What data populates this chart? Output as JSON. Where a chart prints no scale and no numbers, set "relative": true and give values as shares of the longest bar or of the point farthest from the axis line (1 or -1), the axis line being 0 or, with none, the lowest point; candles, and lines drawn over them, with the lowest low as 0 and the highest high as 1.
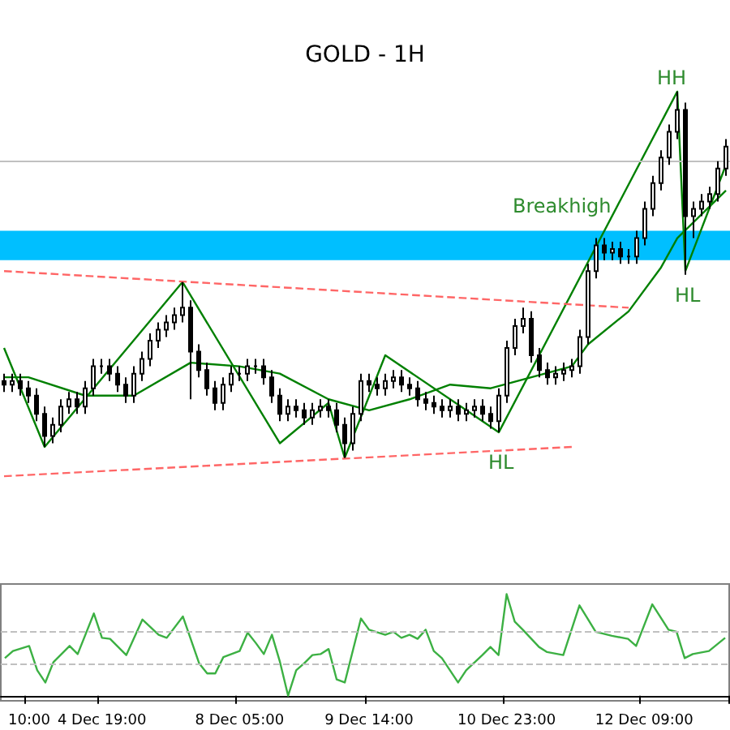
{
  "chart_data": [
    {
      "type": "candlestick",
      "title": "GOLD - 1H",
      "relative": true,
      "tick_labels": false,
      "marker": "none",
      "categories": [
        null,
        null,
        null,
        null,
        null,
        null,
        null,
        null,
        null,
        null,
        null,
        null,
        null,
        null,
        null,
        null,
        null,
        null,
        null,
        null,
        null,
        null,
        null,
        null,
        null,
        null,
        null,
        null,
        null,
        null,
        null,
        null,
        null,
        null,
        null,
        null,
        null,
        null,
        null,
        null,
        null,
        null,
        null,
        null,
        null,
        null,
        null,
        null,
        null,
        null,
        null,
        null,
        null,
        null,
        null,
        null,
        null,
        null,
        null,
        null,
        null,
        null,
        null,
        null,
        null,
        null,
        null,
        null,
        null,
        null,
        null,
        null,
        null,
        null,
        null,
        null,
        null,
        null,
        null,
        null,
        null,
        null,
        null,
        null,
        null,
        null,
        null,
        null,
        null,
        null
      ],
      "ohlc": [
        [
          0.21,
          0.23,
          0.18,
          0.2
        ],
        [
          0.2,
          0.23,
          0.18,
          0.21
        ],
        [
          0.21,
          0.23,
          0.17,
          0.19
        ],
        [
          0.19,
          0.21,
          0.15,
          0.17
        ],
        [
          0.17,
          0.19,
          0.1,
          0.12
        ],
        [
          0.12,
          0.14,
          0.03,
          0.06
        ],
        [
          0.06,
          0.11,
          0.04,
          0.09
        ],
        [
          0.09,
          0.16,
          0.07,
          0.14
        ],
        [
          0.14,
          0.18,
          0.12,
          0.16
        ],
        [
          0.16,
          0.18,
          0.12,
          0.14
        ],
        [
          0.14,
          0.21,
          0.12,
          0.19
        ],
        [
          0.19,
          0.27,
          0.17,
          0.25
        ],
        [
          0.25,
          0.27,
          0.23,
          0.25
        ],
        [
          0.25,
          0.27,
          0.21,
          0.23
        ],
        [
          0.23,
          0.25,
          0.18,
          0.2
        ],
        [
          0.2,
          0.22,
          0.15,
          0.17
        ],
        [
          0.17,
          0.25,
          0.15,
          0.23
        ],
        [
          0.23,
          0.29,
          0.21,
          0.27
        ],
        [
          0.27,
          0.34,
          0.25,
          0.32
        ],
        [
          0.32,
          0.37,
          0.3,
          0.35
        ],
        [
          0.35,
          0.39,
          0.33,
          0.37
        ],
        [
          0.37,
          0.41,
          0.35,
          0.39
        ],
        [
          0.39,
          0.48,
          0.37,
          0.41
        ],
        [
          0.41,
          0.43,
          0.16,
          0.29
        ],
        [
          0.29,
          0.31,
          0.22,
          0.24
        ],
        [
          0.24,
          0.26,
          0.17,
          0.19
        ],
        [
          0.19,
          0.21,
          0.13,
          0.15
        ],
        [
          0.15,
          0.22,
          0.13,
          0.2
        ],
        [
          0.2,
          0.25,
          0.18,
          0.23
        ],
        [
          0.23,
          0.25,
          0.21,
          0.23
        ],
        [
          0.23,
          0.27,
          0.21,
          0.25
        ],
        [
          0.25,
          0.27,
          0.23,
          0.25
        ],
        [
          0.25,
          0.27,
          0.2,
          0.22
        ],
        [
          0.22,
          0.24,
          0.15,
          0.17
        ],
        [
          0.17,
          0.19,
          0.1,
          0.12
        ],
        [
          0.12,
          0.16,
          0.1,
          0.14
        ],
        [
          0.14,
          0.16,
          0.11,
          0.13
        ],
        [
          0.13,
          0.15,
          0.09,
          0.11
        ],
        [
          0.11,
          0.15,
          0.09,
          0.13
        ],
        [
          0.13,
          0.16,
          0.11,
          0.14
        ],
        [
          0.14,
          0.16,
          0.11,
          0.13
        ],
        [
          0.13,
          0.15,
          0.07,
          0.09
        ],
        [
          0.09,
          0.11,
          0.0,
          0.04
        ],
        [
          0.04,
          0.14,
          0.02,
          0.12
        ],
        [
          0.12,
          0.23,
          0.1,
          0.21
        ],
        [
          0.21,
          0.23,
          0.18,
          0.2
        ],
        [
          0.2,
          0.22,
          0.17,
          0.19
        ],
        [
          0.19,
          0.23,
          0.17,
          0.21
        ],
        [
          0.21,
          0.24,
          0.19,
          0.22
        ],
        [
          0.22,
          0.24,
          0.18,
          0.2
        ],
        [
          0.2,
          0.22,
          0.17,
          0.19
        ],
        [
          0.19,
          0.21,
          0.14,
          0.16
        ],
        [
          0.16,
          0.18,
          0.13,
          0.15
        ],
        [
          0.15,
          0.17,
          0.12,
          0.14
        ],
        [
          0.14,
          0.16,
          0.11,
          0.13
        ],
        [
          0.13,
          0.16,
          0.11,
          0.14
        ],
        [
          0.14,
          0.16,
          0.1,
          0.12
        ],
        [
          0.12,
          0.15,
          0.1,
          0.13
        ],
        [
          0.13,
          0.16,
          0.11,
          0.14
        ],
        [
          0.14,
          0.16,
          0.1,
          0.12
        ],
        [
          0.12,
          0.14,
          0.08,
          0.1
        ],
        [
          0.1,
          0.19,
          0.07,
          0.17
        ],
        [
          0.17,
          0.32,
          0.15,
          0.3
        ],
        [
          0.3,
          0.38,
          0.28,
          0.36
        ],
        [
          0.36,
          0.41,
          0.34,
          0.38
        ],
        [
          0.38,
          0.4,
          0.26,
          0.28
        ],
        [
          0.28,
          0.3,
          0.22,
          0.24
        ],
        [
          0.24,
          0.26,
          0.2,
          0.22
        ],
        [
          0.22,
          0.25,
          0.2,
          0.23
        ],
        [
          0.23,
          0.26,
          0.21,
          0.24
        ],
        [
          0.24,
          0.27,
          0.22,
          0.25
        ],
        [
          0.25,
          0.35,
          0.23,
          0.33
        ],
        [
          0.33,
          0.53,
          0.31,
          0.51
        ],
        [
          0.51,
          0.6,
          0.49,
          0.58
        ],
        [
          0.58,
          0.6,
          0.54,
          0.56
        ],
        [
          0.56,
          0.59,
          0.54,
          0.57
        ],
        [
          0.57,
          0.59,
          0.53,
          0.55
        ],
        [
          0.55,
          0.57,
          0.53,
          0.55
        ],
        [
          0.55,
          0.62,
          0.53,
          0.6
        ],
        [
          0.6,
          0.7,
          0.58,
          0.68
        ],
        [
          0.68,
          0.77,
          0.66,
          0.75
        ],
        [
          0.75,
          0.84,
          0.73,
          0.82
        ],
        [
          0.82,
          0.91,
          0.8,
          0.89
        ],
        [
          0.89,
          1.0,
          0.87,
          0.95
        ],
        [
          0.95,
          0.97,
          0.5,
          0.66
        ],
        [
          0.66,
          0.7,
          0.6,
          0.68
        ],
        [
          0.68,
          0.72,
          0.66,
          0.7
        ],
        [
          0.7,
          0.74,
          0.68,
          0.72
        ],
        [
          0.72,
          0.81,
          0.7,
          0.79
        ],
        [
          0.79,
          0.87,
          0.77,
          0.85
        ]
      ],
      "series": [
        {
          "type": "line",
          "color": "#008000",
          "values": [
            0.22,
            null,
            null,
            0.22,
            null,
            null,
            null,
            null,
            null,
            null,
            0.17,
            null,
            null,
            null,
            null,
            null,
            0.17,
            null,
            null,
            null,
            null,
            null,
            null,
            0.26,
            null,
            null,
            null,
            null,
            null,
            0.25,
            null,
            null,
            null,
            null,
            0.23,
            null,
            null,
            null,
            null,
            null,
            0.16,
            null,
            null,
            null,
            null,
            0.13,
            null,
            null,
            null,
            null,
            0.16,
            null,
            null,
            null,
            null,
            0.2,
            null,
            null,
            null,
            null,
            0.19,
            null,
            null,
            null,
            null,
            0.22,
            null,
            null,
            null,
            null,
            0.25,
            null,
            0.31,
            null,
            null,
            null,
            null,
            0.4,
            null,
            null,
            null,
            0.52,
            null,
            0.6,
            null,
            null,
            null,
            null,
            null,
            0.73
          ]
        },
        {
          "type": "line",
          "color": "#008000",
          "values": [
            0.3,
            null,
            null,
            null,
            null,
            0.03,
            null,
            null,
            null,
            null,
            null,
            null,
            null,
            null,
            null,
            null,
            null,
            null,
            null,
            null,
            null,
            null,
            0.48,
            null,
            null,
            null,
            null,
            null,
            null,
            null,
            null,
            null,
            null,
            null,
            0.04,
            null,
            null,
            null,
            null,
            null,
            0.15,
            null,
            0.0,
            null,
            null,
            null,
            null,
            0.28,
            null,
            null,
            null,
            null,
            null,
            null,
            null,
            null,
            null,
            null,
            null,
            null,
            null,
            0.07,
            null,
            null,
            null,
            null,
            null,
            null,
            null,
            null,
            null,
            null,
            null,
            null,
            null,
            null,
            null,
            null,
            null,
            null,
            null,
            null,
            null,
            1.0,
            0.51,
            null,
            null,
            null,
            null,
            0.8
          ]
        },
        {
          "type": "line",
          "color": "#ff6666",
          "line_style": "dashed",
          "values": [
            0.51,
            null,
            null,
            null,
            null,
            null,
            null,
            null,
            null,
            null,
            null,
            null,
            null,
            null,
            null,
            null,
            null,
            null,
            null,
            null,
            null,
            null,
            null,
            null,
            null,
            null,
            null,
            null,
            null,
            null,
            null,
            null,
            null,
            null,
            null,
            null,
            null,
            null,
            null,
            null,
            null,
            null,
            null,
            null,
            null,
            null,
            null,
            null,
            null,
            null,
            null,
            null,
            null,
            null,
            null,
            null,
            null,
            null,
            null,
            null,
            null,
            null,
            null,
            null,
            null,
            null,
            null,
            null,
            null,
            null,
            null,
            null,
            null,
            null,
            null,
            null,
            null,
            0.41,
            null,
            null,
            null,
            null,
            null,
            null,
            null,
            null,
            null,
            null,
            null,
            null
          ]
        },
        {
          "type": "line",
          "color": "#ff6666",
          "line_style": "dashed",
          "values": [
            -0.05,
            null,
            null,
            null,
            null,
            null,
            null,
            null,
            null,
            null,
            null,
            null,
            null,
            null,
            null,
            null,
            null,
            null,
            null,
            null,
            null,
            null,
            null,
            null,
            null,
            null,
            null,
            null,
            null,
            null,
            null,
            null,
            null,
            null,
            null,
            null,
            null,
            null,
            null,
            null,
            null,
            null,
            null,
            null,
            null,
            null,
            null,
            null,
            null,
            null,
            null,
            null,
            null,
            null,
            null,
            null,
            null,
            null,
            null,
            null,
            null,
            null,
            null,
            null,
            null,
            null,
            null,
            null,
            null,
            null,
            0.03,
            null,
            null,
            null,
            null,
            null,
            null,
            null,
            null,
            null,
            null,
            null,
            null,
            null,
            null,
            null,
            null,
            null,
            null,
            null
          ]
        }
      ],
      "ref_lines": [
        {
          "axis": "y",
          "value": 0.81,
          "color": "#c0c0c0"
        }
      ],
      "bands": [
        {
          "axis": "y",
          "from": 0.54,
          "to": 0.62,
          "color": "#00bfff"
        }
      ],
      "annotations": [
        "HH",
        "Breakhigh",
        "HL",
        "HL"
      ]
    },
    {
      "type": "line",
      "relative": true,
      "tick_labels": "x",
      "marker": "none",
      "color": "#3cb043",
      "categories": [
        null,
        null,
        null,
        "10:00",
        null,
        null,
        null,
        null,
        null,
        null,
        null,
        null,
        "4 Dec 19:00",
        null,
        null,
        null,
        null,
        null,
        null,
        null,
        null,
        null,
        null,
        null,
        null,
        null,
        null,
        null,
        null,
        "8 Dec 05:00",
        null,
        null,
        null,
        null,
        null,
        null,
        null,
        null,
        null,
        null,
        null,
        null,
        null,
        null,
        null,
        "9 Dec 14:00",
        null,
        null,
        null,
        null,
        null,
        null,
        null,
        null,
        null,
        null,
        null,
        null,
        null,
        null,
        null,
        null,
        "10 Dec 23:00",
        null,
        null,
        null,
        null,
        null,
        null,
        null,
        null,
        null,
        null,
        null,
        null,
        null,
        null,
        null,
        null,
        "12 Dec 09:00",
        null,
        null,
        null,
        null,
        null,
        null,
        null,
        null,
        null,
        null
      ],
      "values": [
        0.37,
        0.44,
        null,
        0.49,
        0.25,
        0.13,
        0.33,
        null,
        0.49,
        0.41,
        null,
        0.81,
        0.57,
        0.56,
        null,
        0.4,
        null,
        0.75,
        null,
        0.6,
        0.57,
        null,
        0.78,
        null,
        0.32,
        0.22,
        0.22,
        0.38,
        null,
        0.44,
        0.62,
        0.52,
        0.41,
        0.6,
        0.33,
        0.0,
        0.25,
        0.32,
        0.4,
        0.41,
        0.46,
        0.16,
        0.13,
        null,
        0.76,
        0.65,
        null,
        0.6,
        0.63,
        0.57,
        0.6,
        0.56,
        0.65,
        0.44,
        0.37,
        null,
        0.13,
        0.25,
        null,
        0.4,
        0.48,
        0.4,
        1.0,
        0.73,
        0.65,
        null,
        0.48,
        0.43,
        null,
        0.4,
        null,
        0.89,
        null,
        0.63,
        null,
        0.59,
        null,
        0.56,
        0.49,
        null,
        0.9,
        null,
        0.65,
        0.63,
        0.37,
        0.41,
        null,
        0.44,
        null,
        0.57
      ],
      "ref_lines": [
        {
          "axis": "y",
          "value": 0.63,
          "color": "#c0c0c0",
          "line_style": "dashed"
        },
        {
          "axis": "y",
          "value": 0.32,
          "color": "#c0c0c0",
          "line_style": "dashed"
        }
      ]
    }
  ]
}
